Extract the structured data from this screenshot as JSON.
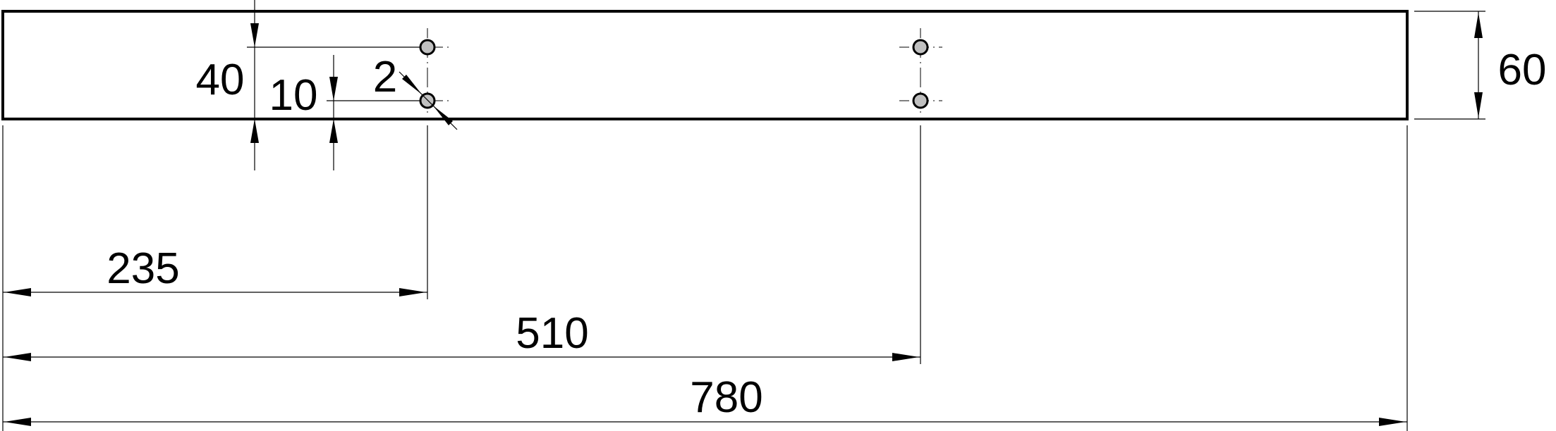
{
  "dimensions": {
    "hole_offset_top": "40",
    "hole_offset_bottom": "10",
    "hole_diameter": "2",
    "height": "60",
    "first_hole": "235",
    "second_hole": "510",
    "length": "780"
  }
}
